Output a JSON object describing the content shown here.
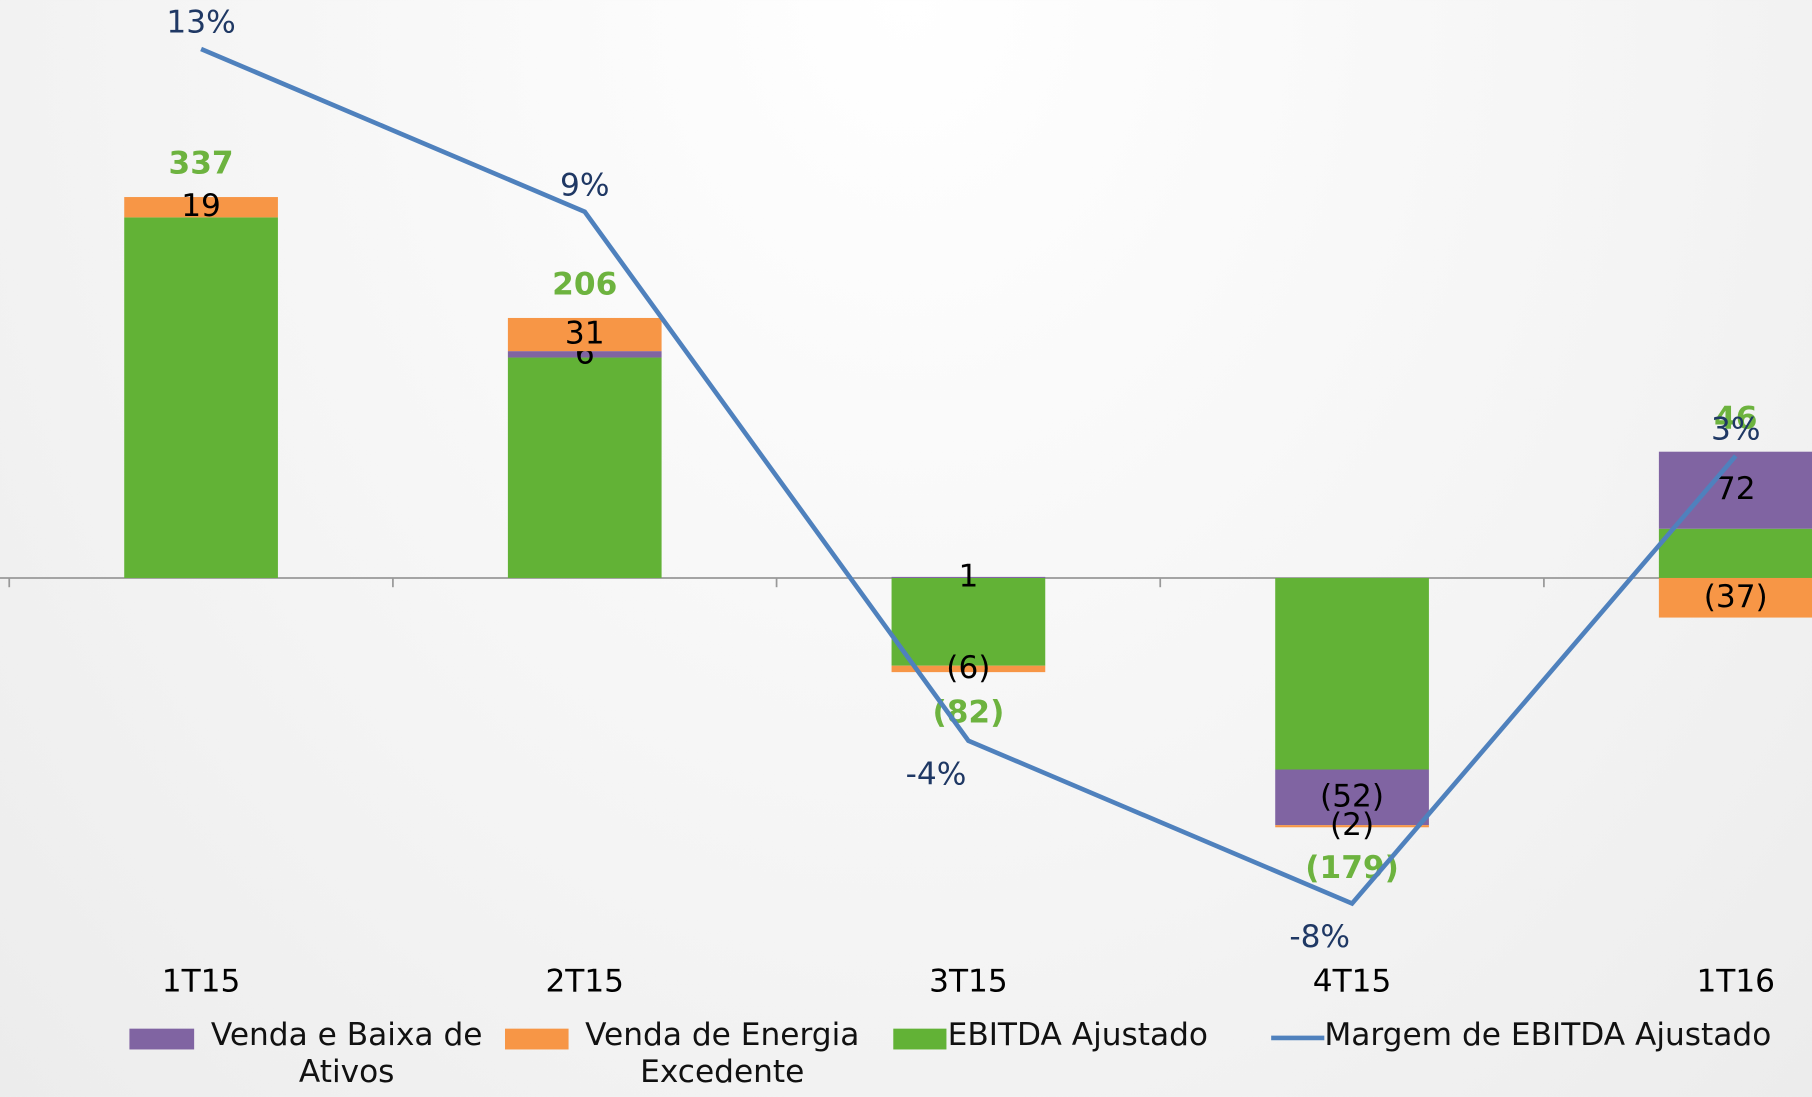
{
  "chart_data": {
    "type": "bar",
    "categories": [
      "1T15",
      "2T15",
      "3T15",
      "4T15",
      "1T16"
    ],
    "series": [
      {
        "name": "Venda e Baixa de Ativos",
        "color": "#8064a2",
        "values": [
          null,
          6,
          1,
          -52,
          72
        ],
        "value_labels": [
          null,
          "6",
          "1",
          "(52)",
          "72"
        ]
      },
      {
        "name": "Venda de Energia Excedente",
        "color": "#f79646",
        "values": [
          19,
          31,
          -6,
          -2,
          -37
        ],
        "value_labels": [
          "19",
          "31",
          "(6)",
          "(2)",
          "(37)"
        ]
      },
      {
        "name": "EBITDA Ajustado",
        "color": "#62b236",
        "values": [
          337,
          206,
          -82,
          -179,
          46
        ],
        "value_labels": [
          "337",
          "206",
          "(82)",
          "(179)",
          "46"
        ]
      },
      {
        "name": "Margem de EBITDA Ajustado",
        "type": "line",
        "axis": "y2",
        "color": "#4f81bd",
        "values": [
          13,
          9,
          -4,
          -8,
          3
        ],
        "value_labels": [
          "13%",
          "9%",
          "-4%",
          "-8%",
          "3%"
        ]
      }
    ],
    "ylim": [
      -324,
      540
    ],
    "y2lim": [
      -8.52,
      14.2
    ]
  }
}
